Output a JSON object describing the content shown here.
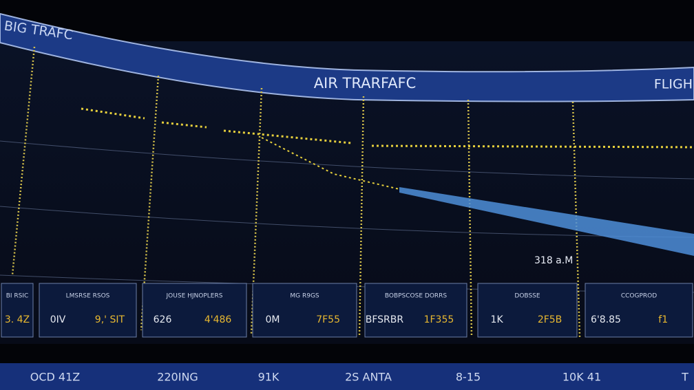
{
  "header": {
    "left_title": "BIG TRAFC",
    "center_title": "AIR TRARFAFC",
    "right_title": "FLIGH"
  },
  "readout": "318 a.M",
  "panels": [
    {
      "label": "BI RSIC",
      "readings": [
        "3. 4Z"
      ]
    },
    {
      "label": "LMSRSE RSOS",
      "readings": [
        "0IV",
        "9,' SIT"
      ]
    },
    {
      "label": "JOUSE HJNOPLERS",
      "readings": [
        "626",
        "4'486"
      ]
    },
    {
      "label": "MG R9GS",
      "readings": [
        "0M",
        "7F55"
      ]
    },
    {
      "label": "BOBPSCOSE DORRS",
      "readings": [
        "BFSRBR",
        "1F355"
      ]
    },
    {
      "label": "DOBSSE",
      "readings": [
        "1K",
        "2F5B"
      ]
    },
    {
      "label": "CCOGPROD",
      "readings": [
        "6'8.85",
        "f1"
      ]
    }
  ],
  "footer": {
    "items": [
      "OCD 41Z",
      "220ING",
      "91K",
      "2S ANTA",
      "8-15",
      "10K 41",
      "T"
    ]
  }
}
